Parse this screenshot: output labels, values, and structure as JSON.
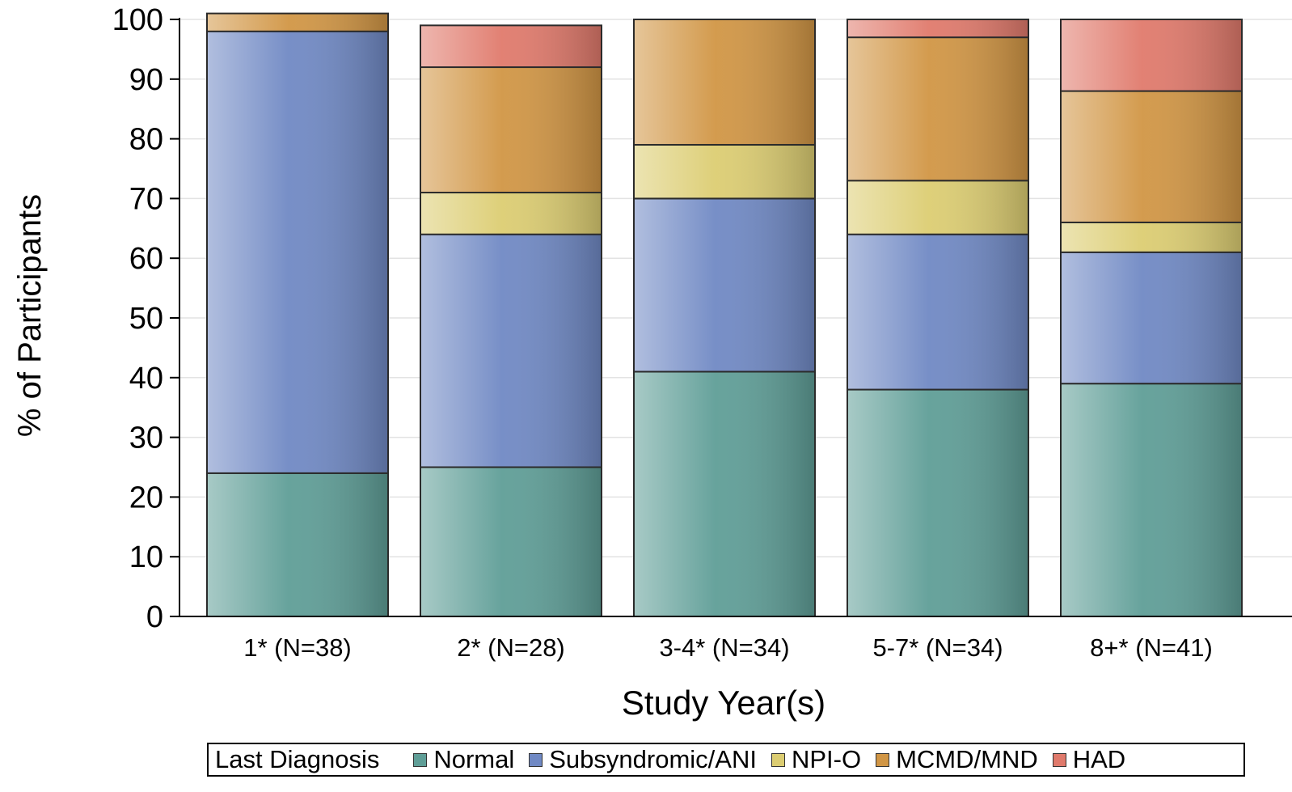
{
  "chart_data": {
    "type": "bar",
    "stacked": true,
    "xlabel": "Study Year(s)",
    "ylabel": "% of Participants",
    "ylim": [
      0,
      100
    ],
    "yticks": [
      0,
      10,
      20,
      30,
      40,
      50,
      60,
      70,
      80,
      90,
      100
    ],
    "grid": true,
    "legend_position": "bottom",
    "legend_title": "Last Diagnosis",
    "categories": [
      "1* (N=38)",
      "2* (N=28)",
      "3-4* (N=34)",
      "5-7* (N=34)",
      "8+* (N=41)"
    ],
    "series": [
      {
        "name": "Normal",
        "color": "#5f9e97",
        "values": [
          24,
          25,
          41,
          38,
          39
        ]
      },
      {
        "name": "Subsyndromic/ANI",
        "color": "#7089c4",
        "values": [
          74,
          39,
          29,
          26,
          22
        ]
      },
      {
        "name": "NPI-O",
        "color": "#dccd72",
        "values": [
          0,
          7,
          9,
          9,
          5
        ]
      },
      {
        "name": "MCMD/MND",
        "color": "#d19645",
        "values": [
          3,
          21,
          21,
          24,
          22
        ]
      },
      {
        "name": "HAD",
        "color": "#e07a6c",
        "values": [
          0,
          7,
          0,
          3,
          12
        ]
      }
    ]
  }
}
